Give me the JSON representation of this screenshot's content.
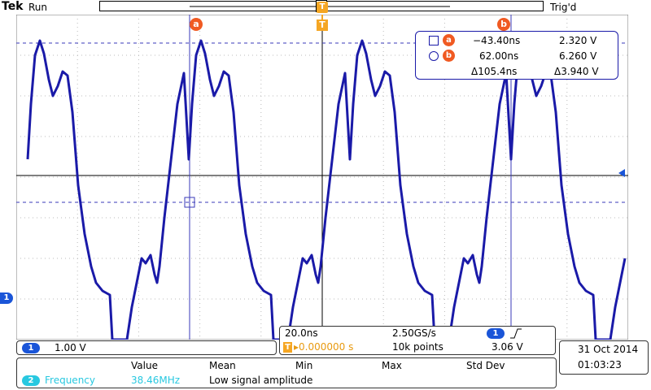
{
  "header": {
    "brand": "Tek",
    "run_state": "Run",
    "trigger_state": "Trig'd",
    "trigger_tag": "T"
  },
  "cursors": {
    "a_label": "a",
    "b_label": "b",
    "a_time": "−43.40ns",
    "a_value": "2.320 V",
    "b_time": "62.00ns",
    "b_value": "6.260 V",
    "delta_time": "Δ105.4ns",
    "delta_value": "Δ3.940 V"
  },
  "channel": {
    "id": "1",
    "marker": "1",
    "scale": "1.00 V",
    "color": "#1a55d8"
  },
  "timebase": {
    "scale": "20.0ns",
    "sample_rate": "2.50GS/s",
    "trigger_channel": "1",
    "trigger_slope_icon": "rising-edge-icon",
    "trigger_position": "▸0.000000 s",
    "record_length": "10k points",
    "trigger_level": "3.06 V"
  },
  "datetime": {
    "date": "31 Oct  2014",
    "time": "01:03:23"
  },
  "measurements": {
    "headers": [
      "Value",
      "Mean",
      "Min",
      "Max",
      "Std Dev"
    ],
    "rows": [
      {
        "source": "2",
        "name": "Frequency",
        "value": "38.46MHz",
        "note": "Low signal amplitude"
      }
    ],
    "measure_color": "#28c8e0"
  },
  "colors": {
    "trace": "#1a1aa8",
    "cursor_tag": "#f05a22",
    "trigger": "#f5a623"
  }
}
